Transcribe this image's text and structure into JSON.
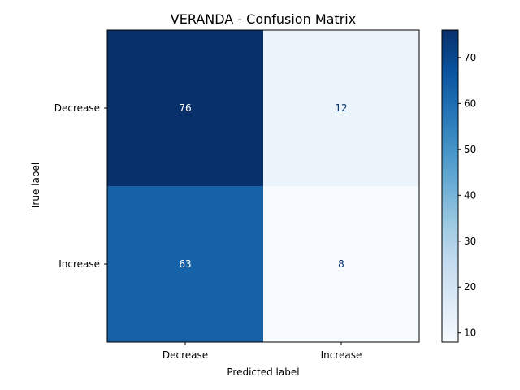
{
  "chart_data": {
    "type": "heatmap",
    "title": "VERANDA - Confusion Matrix",
    "xlabel": "Predicted label",
    "ylabel": "True label",
    "x_categories": [
      "Decrease",
      "Increase"
    ],
    "y_categories": [
      "Decrease",
      "Increase"
    ],
    "values": [
      [
        76,
        12
      ],
      [
        63,
        8
      ]
    ],
    "colormap": "Blues",
    "colorbar": {
      "min": 8,
      "max": 76,
      "ticks": [
        10,
        20,
        30,
        40,
        50,
        60,
        70
      ]
    },
    "colors": {
      "text_dark": "#08306b",
      "text_light": "#ffffff"
    }
  }
}
